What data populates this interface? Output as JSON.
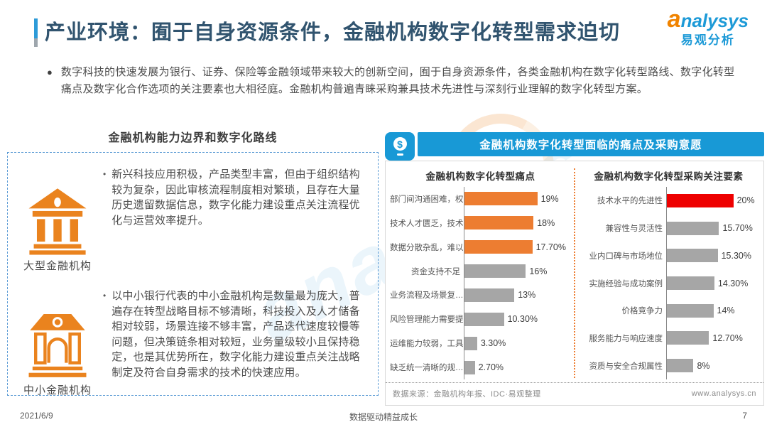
{
  "header": {
    "title": "产业环境：囿于自身资源条件，金融机构数字化转型需求迫切",
    "logo": {
      "en": "analysys",
      "cn": "易观分析"
    }
  },
  "intro": {
    "text": "数字科技的快速发展为银行、证券、保险等金融领域带来较大的创新空间，囿于自身资源条件，各类金融机构在数字化转型路线、数字化转型痛点及数字化合作选项的关注要素也大相径庭。金融机构普遍青睐采购兼具技术先进性与深刻行业理解的数字化转型方案。"
  },
  "left_panel": {
    "title": "金融机构能力边界和数字化路线",
    "items": [
      {
        "label": "大型金融机构",
        "icon": "bank-classic-icon",
        "text": "新兴科技应用积极，产品类型丰富，但由于组织结构较为复杂，因此审核流程制度相对繁琐，且存在大量历史遗留数据信息，数字化能力建设重点关注流程优化与运营效率提升。"
      },
      {
        "label": "中小金融机构",
        "icon": "bank-dome-icon",
        "text": "以中小银行代表的中小金融机构是数量最为庞大，普遍存在转型战略目标不够清晰，科技投入及人才储备相对较弱，场景连接不够丰富，产品迭代速度较慢等问题，但决策链条相对较短，业务量级较小且保持稳定，也是其优势所在，数字化能力建设重点关注战略制定及符合自身需求的技术的快速应用。"
      }
    ]
  },
  "right_panel": {
    "banner": "金融机构数字化转型面临的痛点及采购意愿",
    "source": "数据来源：金融机构年报、IDC·易观整理",
    "website": "www.analysys.cn"
  },
  "chart_data": [
    {
      "type": "bar",
      "orientation": "horizontal",
      "title": "金融机构数字化转型痛点",
      "categories": [
        "部门间沟通困难，权…",
        "技术人才匮乏，技术…",
        "数据分散杂乱，难以…",
        "资金支持不足",
        "业务流程及场景复…",
        "风险管理能力需要提高",
        "运维能力较弱，工具…",
        "缺乏统一清晰的规…"
      ],
      "values": [
        19,
        18,
        17.7,
        16,
        13,
        10.3,
        3.3,
        2.7
      ],
      "labels": [
        "19%",
        "18%",
        "17.70%",
        "16%",
        "13%",
        "10.30%",
        "3.30%",
        "2.70%"
      ],
      "bar_colors": [
        "#ED7D31",
        "#ED7D31",
        "#ED7D31",
        "#A6A6A6",
        "#A6A6A6",
        "#A6A6A6",
        "#A6A6A6",
        "#A6A6A6"
      ],
      "xlim": [
        0,
        20
      ],
      "grid": false,
      "legend": false
    },
    {
      "type": "bar",
      "orientation": "horizontal",
      "title": "金融机构数字化转型采购关注要素",
      "categories": [
        "技术水平的先进性",
        "兼容性与灵活性",
        "业内口碑与市场地位",
        "实施经验与成功案例",
        "价格竞争力",
        "服务能力与响应速度",
        "资质与安全合规属性"
      ],
      "values": [
        20,
        15.7,
        15.3,
        14.3,
        14,
        12.7,
        8
      ],
      "labels": [
        "20%",
        "15.70%",
        "15.30%",
        "14.30%",
        "14%",
        "12.70%",
        "8%"
      ],
      "bar_colors": [
        "#EE0000",
        "#A6A6A6",
        "#A6A6A6",
        "#A6A6A6",
        "#A6A6A6",
        "#A6A6A6",
        "#A6A6A6"
      ],
      "xlim": [
        0,
        20
      ],
      "grid": false,
      "legend": false
    }
  ],
  "footer": {
    "date": "2021/6/9",
    "slogan": "数据驱动精益成长",
    "page": "7"
  },
  "colors": {
    "accent_blue": "#1899D6",
    "orange": "#ED7D31",
    "gray_bar": "#A6A6A6",
    "highlight_red": "#EE0000",
    "title_text": "#31546F"
  }
}
